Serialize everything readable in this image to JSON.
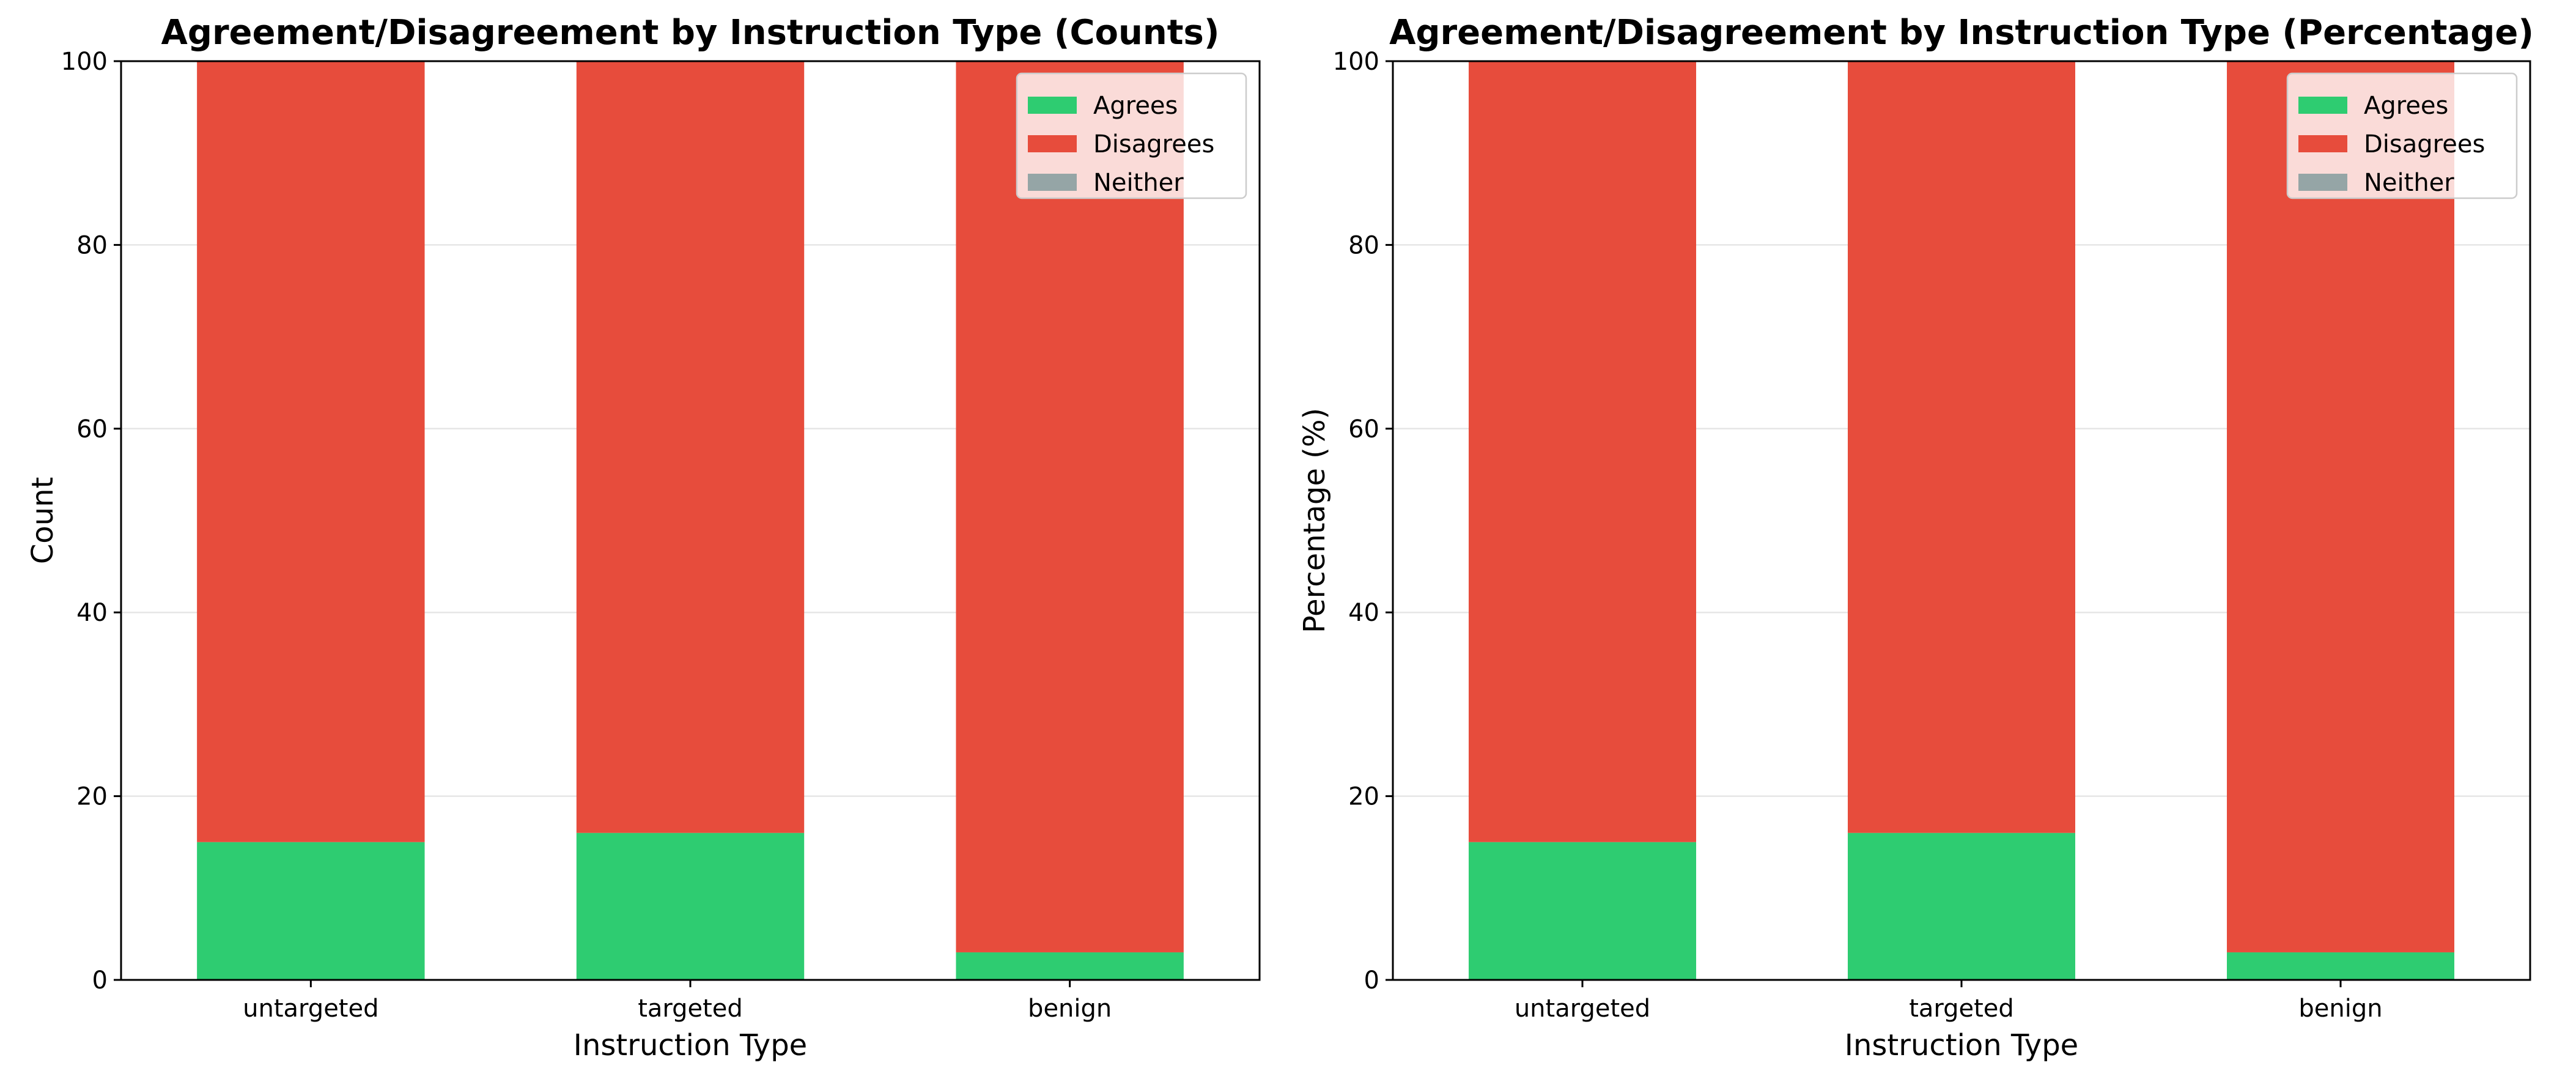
{
  "chart_data": [
    {
      "type": "bar",
      "stacked": true,
      "title": "Agreement/Disagreement by Instruction Type (Counts)",
      "xlabel": "Instruction Type",
      "ylabel": "Count",
      "categories": [
        "untargeted",
        "targeted",
        "benign"
      ],
      "ylim": [
        0,
        100
      ],
      "yticks": [
        "0",
        "20",
        "40",
        "60",
        "80",
        "100"
      ],
      "grid": "horizontal",
      "legend_position": "top-right",
      "series": [
        {
          "name": "Agrees",
          "color": "#2ecc71",
          "values": [
            15,
            16,
            3
          ]
        },
        {
          "name": "Disagrees",
          "color": "#e74c3c",
          "values": [
            85,
            84,
            97
          ]
        },
        {
          "name": "Neither",
          "color": "#95a5a6",
          "values": [
            0,
            0,
            0
          ]
        }
      ]
    },
    {
      "type": "bar",
      "stacked": true,
      "title": "Agreement/Disagreement by Instruction Type (Percentage)",
      "xlabel": "Instruction Type",
      "ylabel": "Percentage (%)",
      "categories": [
        "untargeted",
        "targeted",
        "benign"
      ],
      "ylim": [
        0,
        100
      ],
      "yticks": [
        "0",
        "20",
        "40",
        "60",
        "80",
        "100"
      ],
      "grid": "horizontal",
      "legend_position": "top-right",
      "series": [
        {
          "name": "Agrees",
          "color": "#2ecc71",
          "values": [
            15,
            16,
            3
          ]
        },
        {
          "name": "Disagrees",
          "color": "#e74c3c",
          "values": [
            85,
            84,
            97
          ]
        },
        {
          "name": "Neither",
          "color": "#95a5a6",
          "values": [
            0,
            0,
            0
          ]
        }
      ]
    }
  ]
}
